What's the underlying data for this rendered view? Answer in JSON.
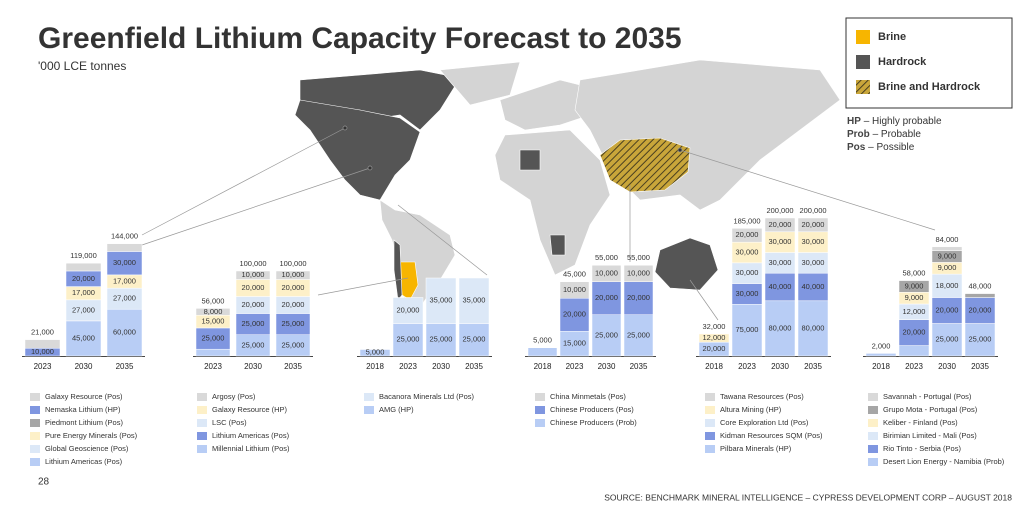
{
  "title": "Greenfield Lithium Capacity Forecast to 2035",
  "subtitle": "'000 LCE tonnes",
  "legend": [
    {
      "name": "Brine",
      "color": "#f7b500"
    },
    {
      "name": "Hardrock",
      "color": "#555555"
    },
    {
      "name": "Brine and Hardrock",
      "color": "#8b7a3a"
    }
  ],
  "notes": [
    {
      "abbr": "HP",
      "text": "– Highly probable"
    },
    {
      "abbr": "Prob",
      "text": "– Probable"
    },
    {
      "abbr": "Pos",
      "text": "– Possible"
    }
  ],
  "page_number": "28",
  "source": "SOURCE: BENCHMARK MINERAL INTELLIGENCE – CYPRESS DEVELOPMENT CORP – AUGUST 2018",
  "chart_data": [
    {
      "type": "bar",
      "stacked": true,
      "categories": [
        "2023",
        "2030",
        "2035"
      ],
      "series": [
        {
          "name": "Galaxy Resource (Pos)",
          "color": "#d9d9d9",
          "values": [
            11000,
            10000,
            10000
          ],
          "value_labels": [
            null,
            null,
            null
          ]
        },
        {
          "name": "Nemaska Lithium (HP)",
          "color": "#7f96e0",
          "values": [
            10000,
            20000,
            30000
          ],
          "value_labels": [
            "10,000",
            "20,000",
            "30,000"
          ]
        },
        {
          "name": "Piedmont Lithium (Pos)",
          "color": "#a6a6a6",
          "values": [
            0,
            0,
            0
          ],
          "value_labels": [
            null,
            null,
            null
          ]
        },
        {
          "name": "Pure Energy Minerals (Pos)",
          "color": "#fdf0c8",
          "values": [
            0,
            17000,
            17000
          ],
          "value_labels": [
            null,
            "17,000",
            "17,000"
          ]
        },
        {
          "name": "Global Geoscience (Pos)",
          "color": "#dce8f7",
          "values": [
            0,
            27000,
            27000
          ],
          "value_labels": [
            null,
            "27,000",
            "27,000"
          ]
        },
        {
          "name": "Lithium Americas (Pos)",
          "color": "#b8cdf5",
          "values": [
            0,
            45000,
            60000
          ],
          "value_labels": [
            null,
            "45,000",
            "60,000"
          ]
        }
      ],
      "totals": [
        21000,
        119000,
        144000
      ],
      "total_labels": [
        "21,000",
        "119,000",
        "144,000"
      ]
    },
    {
      "type": "bar",
      "stacked": true,
      "categories": [
        "2023",
        "2030",
        "2035"
      ],
      "series": [
        {
          "name": "Argosy (Pos)",
          "color": "#d9d9d9",
          "values": [
            8000,
            10000,
            10000
          ],
          "value_labels": [
            "8,000",
            "10,000",
            "10,000"
          ]
        },
        {
          "name": "Galaxy Resource (HP)",
          "color": "#fdf0c8",
          "values": [
            15000,
            20000,
            20000
          ],
          "value_labels": [
            "15,000",
            "20,000",
            "20,000"
          ]
        },
        {
          "name": "LSC (Pos)",
          "color": "#dce8f7",
          "values": [
            0,
            20000,
            20000
          ],
          "value_labels": [
            null,
            "20,000",
            "20,000"
          ]
        },
        {
          "name": "Lithium Americas (Pos)",
          "color": "#7f96e0",
          "values": [
            25000,
            25000,
            25000
          ],
          "value_labels": [
            "25,000",
            "25,000",
            "25,000"
          ]
        },
        {
          "name": "Millennial Lithium (Pos)",
          "color": "#b8cdf5",
          "values": [
            8000,
            25000,
            25000
          ],
          "value_labels": [
            null,
            "25,000",
            "25,000"
          ]
        }
      ],
      "totals": [
        56000,
        100000,
        100000
      ],
      "total_labels": [
        "56,000",
        "100,000",
        "100,000"
      ]
    },
    {
      "type": "bar",
      "stacked": true,
      "categories": [
        "2018",
        "2023",
        "2030",
        "2035"
      ],
      "series": [
        {
          "name": "Bacanora Minerals Ltd (Pos)",
          "color": "#dce8f7",
          "values": [
            0,
            20000,
            35000,
            35000
          ],
          "value_labels": [
            null,
            "20,000",
            "35,000",
            "35,000"
          ]
        },
        {
          "name": "AMG (HP)",
          "color": "#b8cdf5",
          "values": [
            5000,
            25000,
            25000,
            25000
          ],
          "value_labels": [
            "5,000",
            "25,000",
            "25,000",
            "25,000"
          ]
        }
      ]
    },
    {
      "type": "bar",
      "stacked": true,
      "categories": [
        "2018",
        "2023",
        "2030",
        "2035"
      ],
      "series": [
        {
          "name": "China Minmetals (Pos)",
          "color": "#d9d9d9",
          "values": [
            0,
            10000,
            10000,
            10000
          ],
          "value_labels": [
            null,
            "10,000",
            "10,000",
            "10,000"
          ]
        },
        {
          "name": "Chinese Producers (Pos)",
          "color": "#7f96e0",
          "values": [
            0,
            20000,
            20000,
            20000
          ],
          "value_labels": [
            null,
            "20,000",
            "20,000",
            "20,000"
          ]
        },
        {
          "name": "Chinese Producers (Prob)",
          "color": "#b8cdf5",
          "values": [
            5000,
            15000,
            25000,
            25000
          ],
          "value_labels": [
            null,
            "15,000",
            "25,000",
            "25,000"
          ]
        }
      ],
      "totals": [
        5000,
        45000,
        55000,
        55000
      ],
      "total_labels": [
        "5,000",
        "45,000",
        "55,000",
        "55,000"
      ]
    },
    {
      "type": "bar",
      "stacked": true,
      "categories": [
        "2018",
        "2023",
        "2030",
        "2035"
      ],
      "series": [
        {
          "name": "Tawana Resources (Pos)",
          "color": "#d9d9d9",
          "values": [
            0,
            20000,
            20000,
            20000
          ],
          "value_labels": [
            null,
            "20,000",
            "20,000",
            "20,000"
          ]
        },
        {
          "name": "Altura Mining (HP)",
          "color": "#fdf0c8",
          "values": [
            12000,
            30000,
            30000,
            30000
          ],
          "value_labels": [
            "12,000",
            "30,000",
            "30,000",
            "30,000"
          ]
        },
        {
          "name": "Core Exploration Ltd (Pos)",
          "color": "#dce8f7",
          "values": [
            0,
            30000,
            30000,
            30000
          ],
          "value_labels": [
            null,
            "30,000",
            "30,000",
            "30,000"
          ]
        },
        {
          "name": "Kidman Resources SQM (Pos)",
          "color": "#7f96e0",
          "values": [
            0,
            30000,
            40000,
            40000
          ],
          "value_labels": [
            null,
            "30,000",
            "40,000",
            "40,000"
          ]
        },
        {
          "name": "Pilbara Minerals (HP)",
          "color": "#b8cdf5",
          "values": [
            20000,
            75000,
            80000,
            80000
          ],
          "value_labels": [
            "20,000",
            "75,000",
            "80,000",
            "80,000"
          ]
        }
      ],
      "totals": [
        32000,
        185000,
        200000,
        200000
      ],
      "total_labels": [
        "32,000",
        "185,000",
        "200,000",
        "200,000"
      ]
    },
    {
      "type": "bar",
      "stacked": true,
      "categories": [
        "2018",
        "2023",
        "2030",
        "2035"
      ],
      "series": [
        {
          "name": "Savannah - Portugal (Pos)",
          "color": "#d9d9d9",
          "values": [
            0,
            0,
            3000,
            0
          ],
          "value_labels": [
            null,
            null,
            null,
            null
          ]
        },
        {
          "name": "Grupo Mota - Portugal (Pos)",
          "color": "#a6a6a6",
          "values": [
            0,
            9000,
            9000,
            3000
          ],
          "value_labels": [
            null,
            "9,000",
            "9,000",
            null
          ]
        },
        {
          "name": "Keliber - Finland (Pos)",
          "color": "#fdf0c8",
          "values": [
            0,
            9000,
            9000,
            0
          ],
          "value_labels": [
            null,
            "9,000",
            "9,000",
            null
          ]
        },
        {
          "name": "Birimian Limited - Mali (Pos)",
          "color": "#dce8f7",
          "values": [
            0,
            12000,
            18000,
            0
          ],
          "value_labels": [
            null,
            "12,000",
            "18,000",
            null
          ]
        },
        {
          "name": "Rio Tinto - Serbia (Pos)",
          "color": "#7f96e0",
          "values": [
            0,
            20000,
            20000,
            20000
          ],
          "value_labels": [
            null,
            "20,000",
            "20,000",
            "20,000"
          ]
        },
        {
          "name": "Desert Lion Energy - Namibia (Prob)",
          "color": "#b8cdf5",
          "values": [
            2000,
            8000,
            25000,
            25000
          ],
          "value_labels": [
            null,
            null,
            "25,000",
            "25,000"
          ]
        }
      ],
      "totals": [
        2000,
        58000,
        84000,
        48000
      ],
      "total_labels": [
        "2,000",
        "58,000",
        "84,000",
        "48,000"
      ]
    }
  ]
}
